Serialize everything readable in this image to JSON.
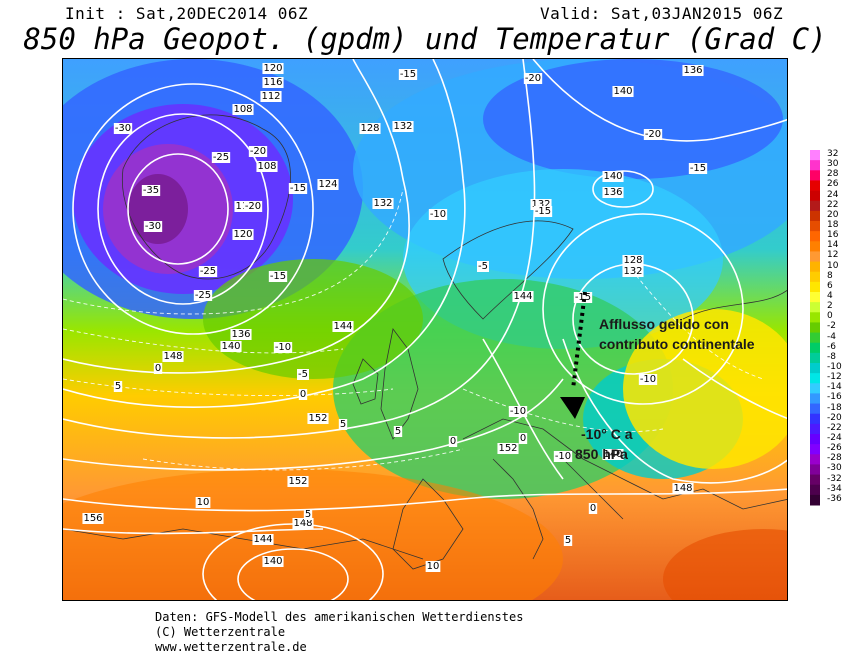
{
  "header": {
    "init": "Init : Sat,20DEC2014 06Z",
    "valid": "Valid: Sat,03JAN2015 06Z",
    "title": "850 hPa Geopot. (gpdm) und Temperatur (Grad C)"
  },
  "map": {
    "geopotential_labels": [
      "156",
      "152",
      "148",
      "144",
      "140",
      "136",
      "132",
      "128",
      "124",
      "120",
      "116",
      "112",
      "108"
    ],
    "temperature_labels": [
      "10",
      "5",
      "0",
      "-5",
      "-10",
      "-15",
      "-20",
      "-25",
      "-30",
      "-35"
    ],
    "annotation": {
      "line1": "Afflusso gelido con",
      "line2": "contributo continentale",
      "line3": "-10° C a",
      "line4": "850 hPa",
      "marker_color": "#000000"
    }
  },
  "legend": {
    "values": [
      "32",
      "30",
      "28",
      "26",
      "24",
      "22",
      "20",
      "18",
      "16",
      "14",
      "12",
      "10",
      "8",
      "6",
      "4",
      "2",
      "0",
      "-2",
      "-4",
      "-6",
      "-8",
      "-10",
      "-12",
      "-14",
      "-16",
      "-18",
      "-20",
      "-22",
      "-24",
      "-26",
      "-28",
      "-30",
      "-32",
      "-34",
      "-36"
    ],
    "colors": [
      "#ff80ff",
      "#ff33cc",
      "#ff0066",
      "#e60000",
      "#cc0000",
      "#b31a1a",
      "#cc3300",
      "#e64d00",
      "#ff6600",
      "#ff8000",
      "#ff9933",
      "#ffb300",
      "#ffcc00",
      "#ffe600",
      "#ffff33",
      "#ccff33",
      "#99e600",
      "#66cc00",
      "#33cc33",
      "#00cc66",
      "#00cc99",
      "#00cccc",
      "#00e6e6",
      "#33ccff",
      "#3399ff",
      "#3366ff",
      "#3333ff",
      "#4d1aff",
      "#6600ff",
      "#8000ff",
      "#9900cc",
      "#800099",
      "#660066",
      "#4d004d",
      "#330033"
    ]
  },
  "footer": {
    "line1": "Daten: GFS-Modell des amerikanischen Wetterdienstes",
    "line2": "(C) Wetterzentrale",
    "line3": "www.wetterzentrale.de"
  }
}
